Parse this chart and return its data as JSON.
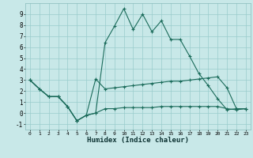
{
  "xlabel": "Humidex (Indice chaleur)",
  "bg_color": "#c8e8e8",
  "grid_color": "#99cccc",
  "line_color": "#1a6b5a",
  "xlim": [
    -0.5,
    23.5
  ],
  "ylim": [
    -1.5,
    10.0
  ],
  "xticks": [
    0,
    1,
    2,
    3,
    4,
    5,
    6,
    7,
    8,
    9,
    10,
    11,
    12,
    13,
    14,
    15,
    16,
    17,
    18,
    19,
    20,
    21,
    22,
    23
  ],
  "yticks": [
    -1,
    0,
    1,
    2,
    3,
    4,
    5,
    6,
    7,
    8,
    9
  ],
  "series": [
    {
      "x": [
        0,
        1,
        2,
        3,
        4,
        5,
        6,
        7,
        8,
        9,
        10,
        11,
        12,
        13,
        14,
        15,
        16,
        17,
        18,
        19,
        20,
        21,
        22,
        23
      ],
      "y": [
        3.0,
        2.2,
        1.5,
        1.5,
        0.6,
        -0.7,
        -0.2,
        0.0,
        6.4,
        7.9,
        9.5,
        7.6,
        9.0,
        7.4,
        8.4,
        6.7,
        6.7,
        5.2,
        3.6,
        2.5,
        1.3,
        0.3,
        0.4,
        0.4
      ]
    },
    {
      "x": [
        0,
        1,
        2,
        3,
        4,
        5,
        6,
        7,
        8,
        9,
        10,
        11,
        12,
        13,
        14,
        15,
        16,
        17,
        18,
        19,
        20,
        21,
        22,
        23
      ],
      "y": [
        3.0,
        2.2,
        1.5,
        1.5,
        0.6,
        -0.7,
        -0.2,
        3.1,
        2.2,
        2.3,
        2.4,
        2.5,
        2.6,
        2.7,
        2.8,
        2.9,
        2.9,
        3.0,
        3.1,
        3.2,
        3.3,
        2.3,
        0.4,
        0.4
      ]
    },
    {
      "x": [
        0,
        1,
        2,
        3,
        4,
        5,
        6,
        7,
        8,
        9,
        10,
        11,
        12,
        13,
        14,
        15,
        16,
        17,
        18,
        19,
        20,
        21,
        22,
        23
      ],
      "y": [
        3.0,
        2.2,
        1.5,
        1.5,
        0.6,
        -0.7,
        -0.2,
        0.0,
        0.4,
        0.4,
        0.5,
        0.5,
        0.5,
        0.5,
        0.6,
        0.6,
        0.6,
        0.6,
        0.6,
        0.6,
        0.6,
        0.4,
        0.3,
        0.4
      ]
    }
  ]
}
